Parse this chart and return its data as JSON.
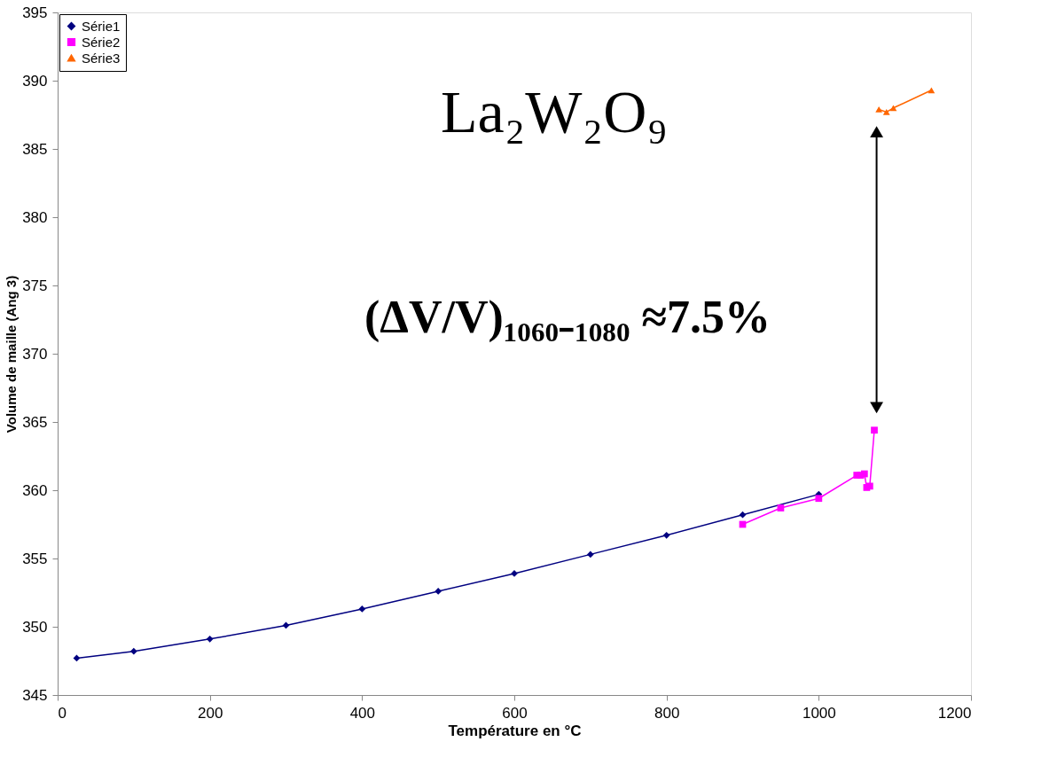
{
  "chart_data": {
    "type": "line",
    "xlabel": "Température en °C",
    "ylabel": "Volume de maille (Ang 3)",
    "xlim": [
      0,
      1200
    ],
    "xticks": [
      0,
      200,
      400,
      600,
      800,
      1000,
      1200
    ],
    "ylim": [
      345,
      395
    ],
    "yticks": [
      345,
      350,
      355,
      360,
      365,
      370,
      375,
      380,
      385,
      390,
      395
    ],
    "grid": false,
    "legend": "top left",
    "line_style": "solid",
    "annotations": [
      "La₂W₂O₉",
      "(ΔV/V)₁₀₆₀₋₁₀₈₀ ≈7.5%"
    ],
    "series": [
      {
        "name": "Série1",
        "color": "#000080",
        "marker": "diamond",
        "x": [
          25,
          100,
          200,
          300,
          400,
          500,
          600,
          700,
          800,
          900,
          1000
        ],
        "values": [
          347.7,
          348.2,
          349.1,
          350.1,
          351.3,
          352.6,
          353.9,
          355.3,
          356.7,
          358.2,
          359.7
        ]
      },
      {
        "name": "Série2",
        "color": "#ff00ff",
        "marker": "square",
        "x": [
          900,
          950,
          1000,
          1050,
          1055,
          1060,
          1063,
          1067,
          1073
        ],
        "values": [
          357.5,
          358.7,
          359.4,
          361.1,
          361.1,
          361.2,
          360.2,
          360.3,
          364.4
        ]
      },
      {
        "name": "Série3",
        "color": "#ff6600",
        "marker": "triangle",
        "x": [
          1079,
          1089,
          1098,
          1148
        ],
        "values": [
          387.9,
          387.7,
          388.0,
          389.3
        ]
      }
    ]
  }
}
